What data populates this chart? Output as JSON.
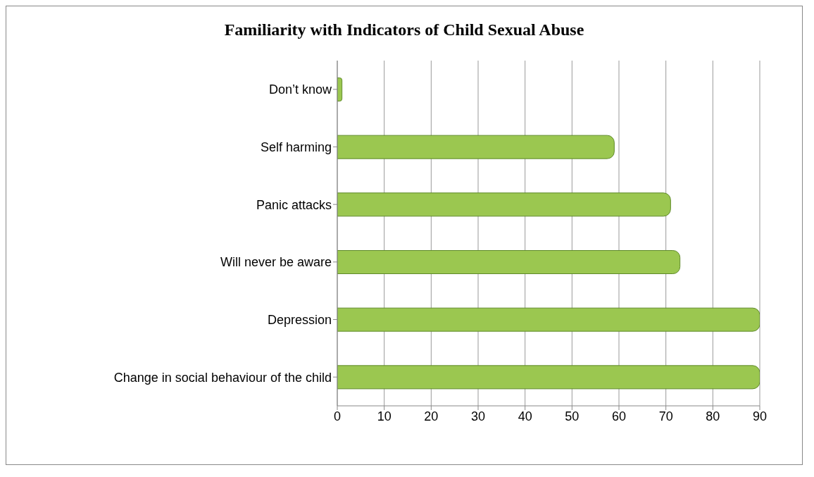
{
  "chart_data": {
    "type": "bar",
    "orientation": "horizontal",
    "title": "Familiarity with Indicators of Child Sexual Abuse",
    "categories": [
      "Don’t know",
      "Self harming",
      "Panic attacks",
      "Will never be aware",
      "Depression",
      "Change in social behaviour of the child"
    ],
    "values": [
      1,
      59,
      71,
      73,
      90,
      90
    ],
    "color": "#9bc750",
    "xlim": [
      0,
      90
    ],
    "xticks": [
      0,
      10,
      20,
      30,
      40,
      50,
      60,
      70,
      80,
      90
    ],
    "grid": "x",
    "legend": false
  }
}
